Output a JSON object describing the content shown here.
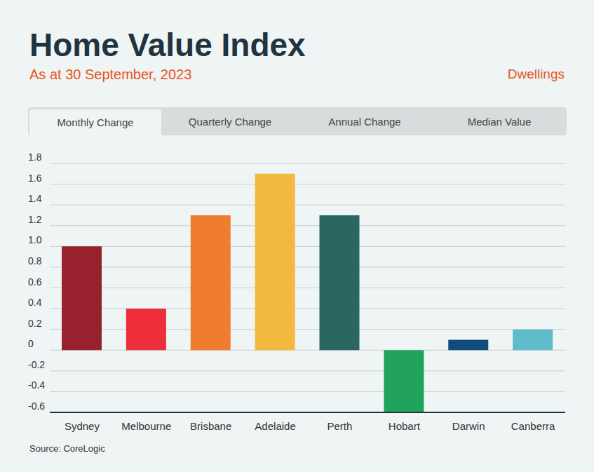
{
  "chart_data": {
    "type": "bar",
    "title": "Home Value Index",
    "subtitle": "As at 30 September, 2023",
    "annotation": "Dwellings",
    "tabs": [
      "Monthly Change",
      "Quarterly Change",
      "Annual Change",
      "Median Value"
    ],
    "source": "Source: CoreLogic",
    "categories": [
      "Sydney",
      "Melbourne",
      "Brisbane",
      "Adelaide",
      "Perth",
      "Hobart",
      "Darwin",
      "Canberra"
    ],
    "values": [
      1.0,
      0.4,
      1.3,
      1.7,
      1.3,
      -0.6,
      0.1,
      0.2
    ],
    "colors": [
      "#97222e",
      "#ee2e3a",
      "#f07d2f",
      "#f1b940",
      "#2c6660",
      "#21a35b",
      "#0f4c7a",
      "#5fbccb"
    ],
    "ylim": [
      -0.6,
      1.8
    ],
    "yticks": [
      -0.6,
      -0.4,
      -0.2,
      0,
      0.2,
      0.4,
      0.6,
      0.8,
      {
        "value": 1,
        "label": "1.0"
      },
      1.2,
      1.4,
      1.6,
      1.8
    ],
    "grid": true
  }
}
